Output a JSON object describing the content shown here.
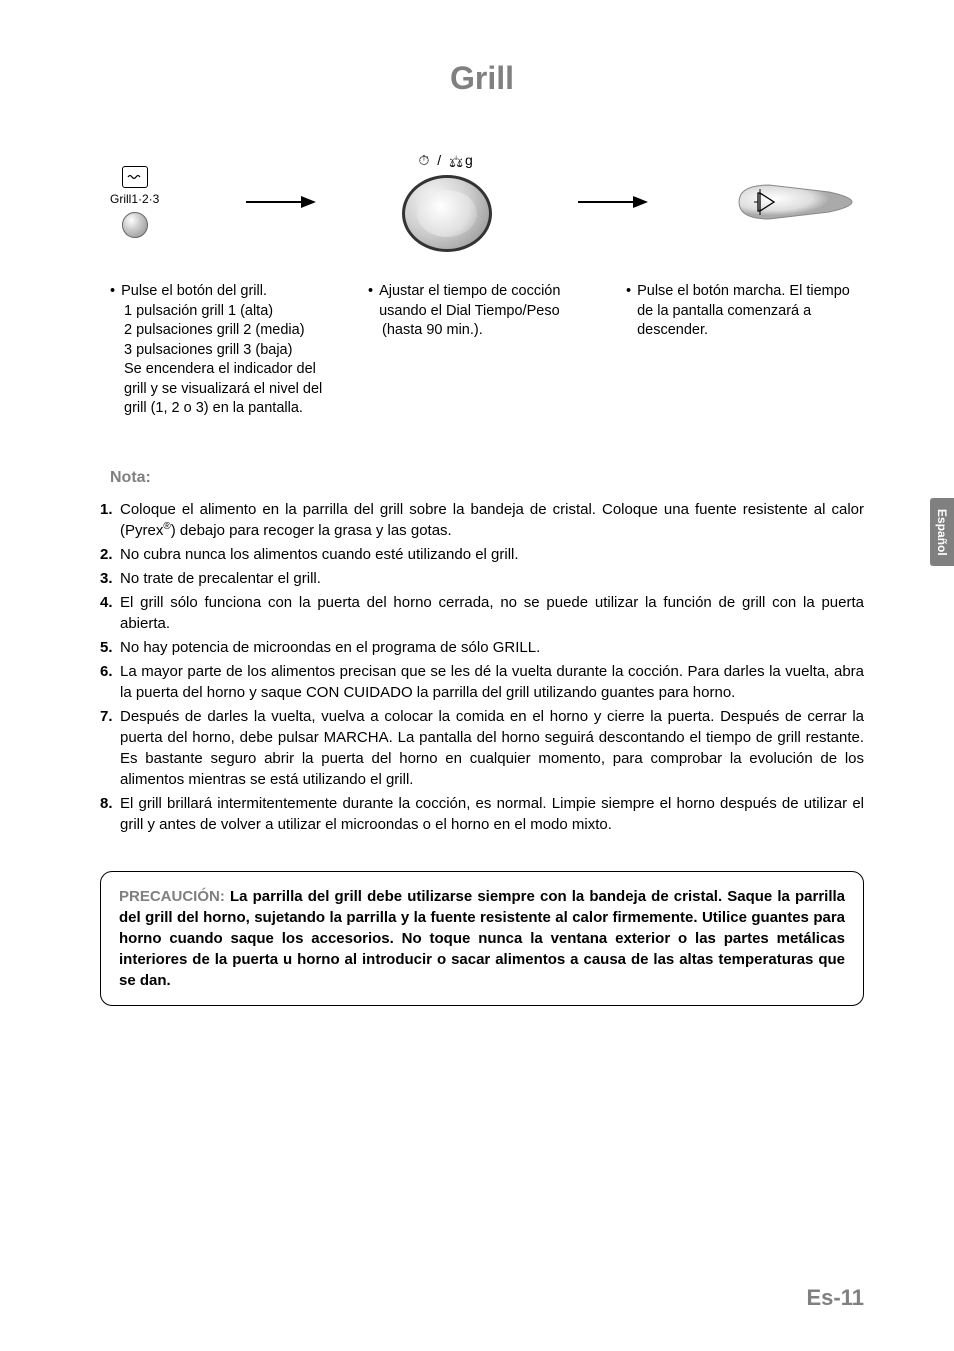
{
  "title": "Grill",
  "sideTab": "Español",
  "pageNumber": "Es-11",
  "colors": {
    "heading": "#808080",
    "text": "#000000",
    "background": "#ffffff",
    "tabBg": "#808080",
    "tabText": "#ffffff"
  },
  "icons": {
    "grillLabel": "Grill1·2·3",
    "dialSymbols": "⏱ / ⚖g"
  },
  "steps": {
    "col1": {
      "bullet": "•",
      "lines": [
        "Pulse el botón del grill.",
        "1 pulsación grill 1 (alta)",
        "2 pulsaciones grill 2 (media)",
        "3 pulsaciones grill 3 (baja)",
        "Se encendera el indicador del grill y se visualizará el nivel del grill (1, 2 o 3) en la pantalla."
      ]
    },
    "col2": {
      "bullet": "•",
      "lines": [
        "Ajustar el tiempo de cocción usando el Dial Tiempo/Peso",
        "(hasta 90 min.)."
      ]
    },
    "col3": {
      "bullet": "•",
      "lines": [
        "Pulse el botón marcha. El tiempo de la pantalla comenzará a descender."
      ]
    }
  },
  "notaHeading": "Nota:",
  "notes": [
    {
      "num": "1.",
      "text": "Coloque el alimento en la parrilla del grill sobre la bandeja de cristal. Coloque una fuente resistente al calor (Pyrex®) debajo para recoger la grasa y las gotas."
    },
    {
      "num": "2.",
      "text": "No cubra nunca los alimentos cuando esté utilizando el grill."
    },
    {
      "num": "3.",
      "text": "No trate de precalentar el grill."
    },
    {
      "num": "4.",
      "text": "El grill sólo funciona con la puerta del horno cerrada, no se puede utilizar la función de grill con la puerta abierta."
    },
    {
      "num": "5.",
      "text": "No hay potencia de microondas en el programa de sólo GRILL."
    },
    {
      "num": "6.",
      "text": "La mayor parte de los alimentos precisan que se les dé la vuelta durante la cocción. Para darles la vuelta, abra la puerta del horno y saque CON CUIDADO la parrilla del grill utilizando guantes para horno."
    },
    {
      "num": "7.",
      "text": "Después de darles la vuelta, vuelva a colocar la comida en el horno y cierre la puerta. Después de cerrar la puerta del horno, debe pulsar MARCHA. La pantalla del horno seguirá descontando el tiempo de grill restante. Es bastante seguro abrir la puerta del horno en cualquier momento, para comprobar la evolución de los alimentos mientras se está utilizando el grill."
    },
    {
      "num": "8.",
      "text": "El grill brillará intermitentemente durante la cocción, es normal. Limpie siempre el horno después de utilizar el grill y antes de volver a utilizar el microondas o el horno en el modo mixto."
    }
  ],
  "caution": {
    "label": "PRECAUCIÓN:",
    "text": "La parrilla del grill debe utilizarse siempre con la bandeja de cristal. Saque la parrilla del grill del horno, sujetando la parrilla y la fuente resistente al calor firmemente. Utilice guantes para horno cuando saque los accesorios. No toque nunca la ventana exterior o las partes metálicas interiores de la puerta u horno al introducir o sacar alimentos a causa de las altas temperaturas que se dan."
  }
}
